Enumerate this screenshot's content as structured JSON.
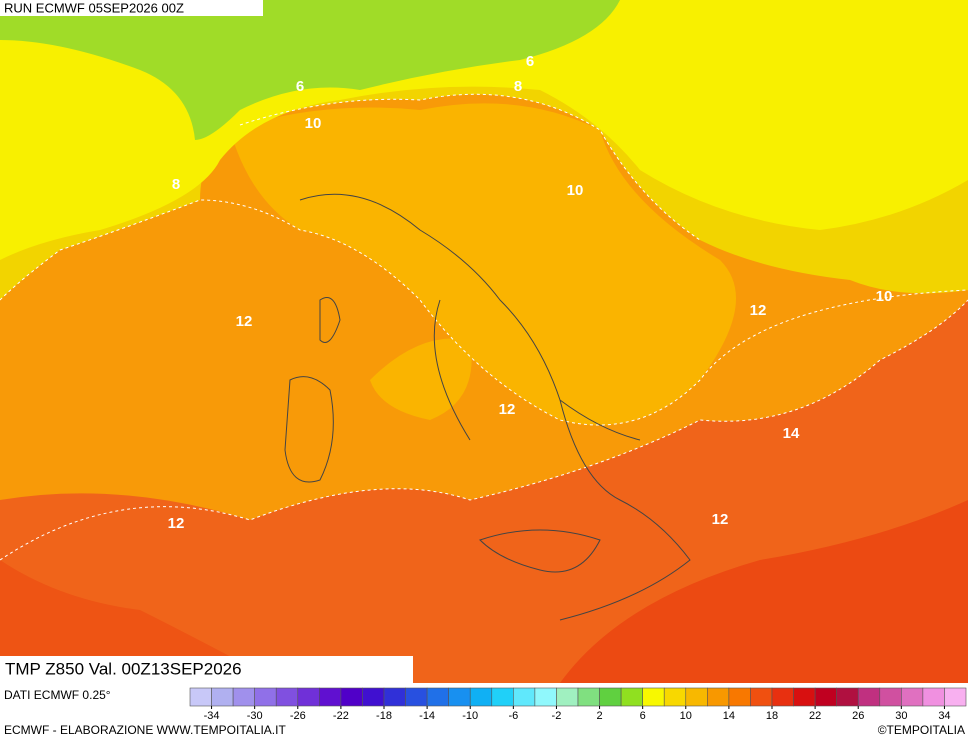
{
  "header": {
    "run": "RUN ECMWF 05SEP2026 00Z",
    "title": "TMP Z850 Val. 00Z13SEP2026",
    "source": "DATI ECMWF 0.25°"
  },
  "contour_labels": [
    6,
    6,
    8,
    8,
    10,
    10,
    10,
    12,
    12,
    12,
    12,
    12,
    14
  ],
  "legend": {
    "colors": [
      "#c8c8f8",
      "#b0b0f0",
      "#a090ec",
      "#9070e8",
      "#8050e0",
      "#7030d8",
      "#6010d0",
      "#5000c8",
      "#4010d0",
      "#3030d8",
      "#2850e0",
      "#2070e8",
      "#1890f0",
      "#10b0f4",
      "#20d0f8",
      "#60e8fc",
      "#90f8fc",
      "#a0f0c0",
      "#80e080",
      "#60d040",
      "#90e020",
      "#f8f800",
      "#f8d800",
      "#f8b800",
      "#f89800",
      "#f87800",
      "#f05010",
      "#e83010",
      "#d81010",
      "#c00020",
      "#b01040",
      "#c03080",
      "#d050a0",
      "#e070c0",
      "#f090e0",
      "#f8b0f0"
    ],
    "ticks": [
      -34,
      -30,
      -26,
      -22,
      -18,
      -14,
      -10,
      -6,
      -2,
      2,
      6,
      10,
      14,
      18,
      22,
      26,
      30,
      34
    ]
  },
  "footer": {
    "left": "ECMWF - ELABORAZIONE WWW.TEMPOITALIA.IT",
    "right": "©TEMPOITALIA"
  }
}
